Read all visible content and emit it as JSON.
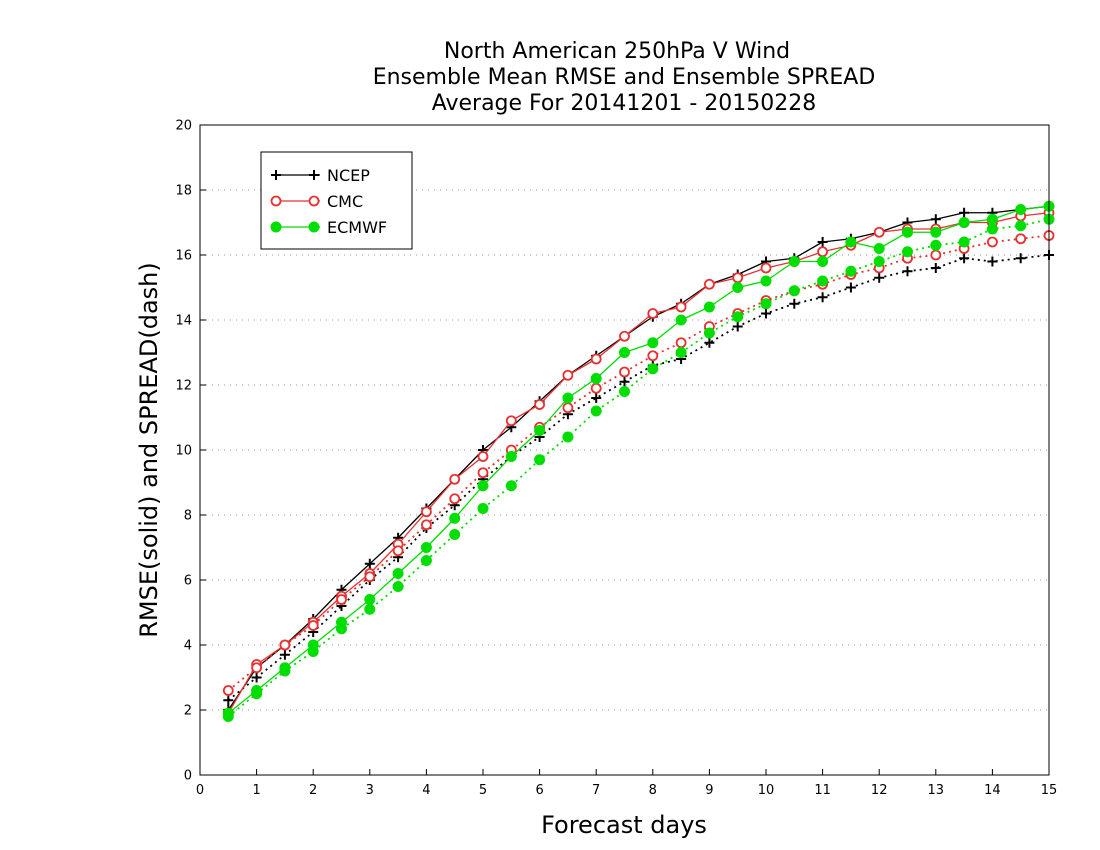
{
  "chart_data": {
    "type": "line",
    "title_lines": [
      "North American 250hPa V Wind",
      "Ensemble Mean RMSE and Ensemble SPREAD",
      "Average For 20141201 - 20150228"
    ],
    "xlabel": "Forecast days",
    "ylabel": "RMSE(solid) and SPREAD(dash)",
    "xlim": [
      0,
      15
    ],
    "ylim": [
      0,
      20
    ],
    "xticks": [
      "0",
      "1",
      "2",
      "3",
      "4",
      "5",
      "6",
      "7",
      "8",
      "9",
      "10",
      "11",
      "12",
      "13",
      "14",
      "15"
    ],
    "yticks": [
      "0",
      "2",
      "4",
      "6",
      "8",
      "10",
      "12",
      "14",
      "16",
      "18",
      "20"
    ],
    "grid": "horizontal dotted",
    "legend_position": "top-left",
    "x": [
      0.5,
      1,
      1.5,
      2,
      2.5,
      3,
      3.5,
      4,
      4.5,
      5,
      5.5,
      6,
      6.5,
      7,
      7.5,
      8,
      8.5,
      9,
      9.5,
      10,
      10.5,
      11,
      11.5,
      12,
      12.5,
      13,
      13.5,
      14,
      14.5,
      15
    ],
    "series": [
      {
        "name": "NCEP",
        "color": "#000000",
        "marker": "plus",
        "rmse": [
          2.0,
          3.3,
          4.0,
          4.8,
          5.7,
          6.5,
          7.3,
          8.2,
          9.1,
          10.0,
          10.7,
          11.5,
          12.3,
          12.9,
          13.5,
          14.1,
          14.5,
          15.1,
          15.4,
          15.8,
          15.9,
          16.4,
          16.5,
          16.7,
          17.0,
          17.1,
          17.3,
          17.3,
          17.4,
          17.5
        ],
        "spread": [
          2.3,
          3.0,
          3.7,
          4.4,
          5.2,
          6.0,
          6.7,
          7.6,
          8.3,
          9.1,
          9.8,
          10.4,
          11.1,
          11.6,
          12.1,
          12.6,
          12.8,
          13.3,
          13.8,
          14.2,
          14.5,
          14.7,
          15.0,
          15.3,
          15.5,
          15.6,
          15.9,
          15.8,
          15.9,
          16.0
        ]
      },
      {
        "name": "CMC",
        "color": "#e83030",
        "marker": "open-circle",
        "rmse": [
          1.9,
          3.4,
          4.0,
          4.7,
          5.5,
          6.2,
          7.1,
          8.1,
          9.1,
          9.8,
          10.9,
          11.4,
          12.3,
          12.8,
          13.5,
          14.2,
          14.4,
          15.1,
          15.3,
          15.6,
          15.8,
          16.1,
          16.3,
          16.7,
          16.8,
          16.8,
          17.0,
          17.0,
          17.2,
          17.3
        ],
        "spread": [
          2.6,
          3.3,
          4.0,
          4.6,
          5.4,
          6.1,
          6.9,
          7.7,
          8.5,
          9.3,
          10.0,
          10.7,
          11.3,
          11.9,
          12.4,
          12.9,
          13.3,
          13.8,
          14.2,
          14.6,
          14.9,
          15.1,
          15.4,
          15.6,
          15.9,
          16.0,
          16.2,
          16.4,
          16.5,
          16.6
        ]
      },
      {
        "name": "ECMWF",
        "color": "#00dd00",
        "marker": "filled-circle",
        "rmse": [
          1.9,
          2.6,
          3.3,
          4.0,
          4.7,
          5.4,
          6.2,
          7.0,
          7.9,
          8.9,
          9.8,
          10.6,
          11.6,
          12.2,
          13.0,
          13.3,
          14.0,
          14.4,
          15.0,
          15.2,
          15.8,
          15.8,
          16.4,
          16.2,
          16.7,
          16.7,
          17.0,
          17.1,
          17.4,
          17.5
        ],
        "spread": [
          1.8,
          2.5,
          3.2,
          3.8,
          4.5,
          5.1,
          5.8,
          6.6,
          7.4,
          8.2,
          8.9,
          9.7,
          10.4,
          11.2,
          11.8,
          12.5,
          13.0,
          13.6,
          14.1,
          14.5,
          14.9,
          15.2,
          15.5,
          15.8,
          16.1,
          16.3,
          16.4,
          16.8,
          16.9,
          17.1
        ]
      }
    ]
  }
}
